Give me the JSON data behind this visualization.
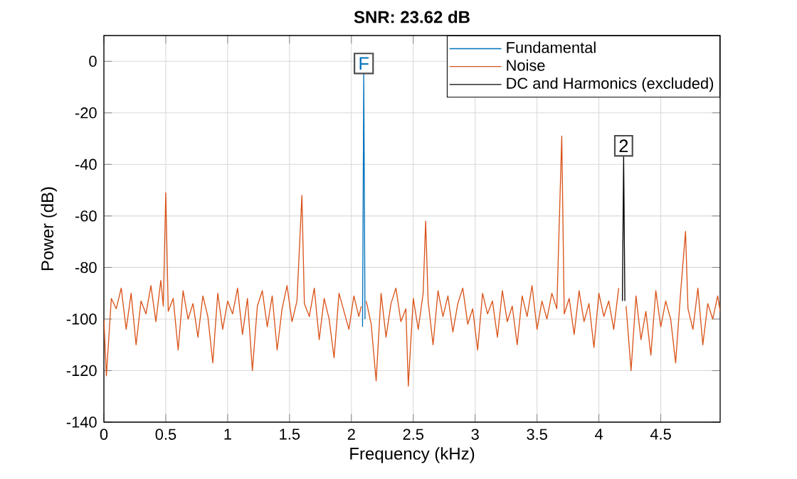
{
  "chart_data": {
    "type": "line",
    "title": "SNR:  23.62 dB",
    "xlabel": "Frequency (kHz)",
    "ylabel": "Power (dB)",
    "xlim": [
      0,
      4.98
    ],
    "ylim": [
      -140,
      10
    ],
    "xticks": [
      0,
      0.5,
      1,
      1.5,
      2,
      2.5,
      3,
      3.5,
      4,
      4.5
    ],
    "yticks": [
      -140,
      -120,
      -100,
      -80,
      -60,
      -40,
      -20,
      0
    ],
    "grid": true,
    "legend": "top right",
    "series": [
      {
        "name": "Fundamental",
        "color": "#0072bd",
        "x": [
          2.09,
          2.1,
          2.11
        ],
        "values": [
          -103,
          -5,
          -100
        ]
      },
      {
        "name": "Noise",
        "color": "#d95319",
        "x": [
          0,
          0.02,
          0.06,
          0.1,
          0.14,
          0.18,
          0.22,
          0.26,
          0.3,
          0.34,
          0.38,
          0.42,
          0.46,
          0.48,
          0.5,
          0.52,
          0.56,
          0.6,
          0.64,
          0.68,
          0.72,
          0.76,
          0.8,
          0.84,
          0.88,
          0.92,
          0.96,
          1.0,
          1.04,
          1.08,
          1.12,
          1.16,
          1.2,
          1.24,
          1.28,
          1.32,
          1.36,
          1.4,
          1.44,
          1.48,
          1.52,
          1.56,
          1.6,
          1.62,
          1.66,
          1.7,
          1.74,
          1.78,
          1.82,
          1.86,
          1.9,
          1.94,
          1.98,
          2.02,
          2.06,
          2.08,
          2.1,
          2.12,
          2.16,
          2.2,
          2.24,
          2.28,
          2.32,
          2.36,
          2.4,
          2.44,
          2.46,
          2.5,
          2.54,
          2.58,
          2.6,
          2.62,
          2.66,
          2.7,
          2.74,
          2.78,
          2.82,
          2.86,
          2.9,
          2.94,
          2.98,
          3.02,
          3.06,
          3.1,
          3.14,
          3.18,
          3.22,
          3.26,
          3.3,
          3.34,
          3.38,
          3.42,
          3.46,
          3.5,
          3.54,
          3.58,
          3.62,
          3.66,
          3.7,
          3.72,
          3.76,
          3.8,
          3.84,
          3.88,
          3.92,
          3.96,
          4.0,
          4.04,
          4.08,
          4.12,
          4.16,
          4.2,
          4.22,
          4.26,
          4.3,
          4.34,
          4.38,
          4.42,
          4.46,
          4.5,
          4.54,
          4.58,
          4.62,
          4.66,
          4.7,
          4.72,
          4.76,
          4.8,
          4.84,
          4.88,
          4.92,
          4.96,
          4.98
        ],
        "values": [
          -100,
          -122,
          -92,
          -96,
          -88,
          -104,
          -90,
          -110,
          -93,
          -98,
          -87,
          -101,
          -85,
          -95,
          -51,
          -97,
          -92,
          -112,
          -89,
          -100,
          -94,
          -107,
          -91,
          -99,
          -117,
          -90,
          -104,
          -93,
          -98,
          -88,
          -106,
          -92,
          -120,
          -95,
          -89,
          -103,
          -91,
          -112,
          -96,
          -87,
          -101,
          -93,
          -52,
          -94,
          -99,
          -88,
          -108,
          -92,
          -100,
          -115,
          -90,
          -97,
          -104,
          -91,
          -99,
          -95,
          null,
          -93,
          -102,
          -124,
          -90,
          -107,
          -94,
          -88,
          -101,
          -96,
          -126,
          -92,
          -104,
          -90,
          -62,
          -93,
          -110,
          -89,
          -99,
          -91,
          -105,
          -94,
          -88,
          -102,
          -96,
          -112,
          -90,
          -98,
          -93,
          -107,
          -89,
          -101,
          -95,
          -110,
          -91,
          -99,
          -87,
          -104,
          -93,
          -100,
          -90,
          -96,
          -29,
          -98,
          -92,
          -106,
          -89,
          -101,
          -94,
          -111,
          -90,
          -99,
          -93,
          -104,
          -88,
          null,
          -95,
          -120,
          -91,
          -108,
          -97,
          -114,
          -89,
          -103,
          -93,
          -100,
          -117,
          -90,
          -66,
          -96,
          -104,
          -88,
          -110,
          -94,
          -100,
          -91,
          -97
        ]
      },
      {
        "name": "DC and Harmonics (excluded)",
        "color": "#000000",
        "x": [
          4.19,
          4.2,
          4.21
        ],
        "values": [
          -93,
          -37,
          -93
        ]
      }
    ],
    "annotations": [
      {
        "text": "F",
        "x": 2.1,
        "y": -5
      },
      {
        "text": "2",
        "x": 4.2,
        "y": -37
      }
    ]
  }
}
